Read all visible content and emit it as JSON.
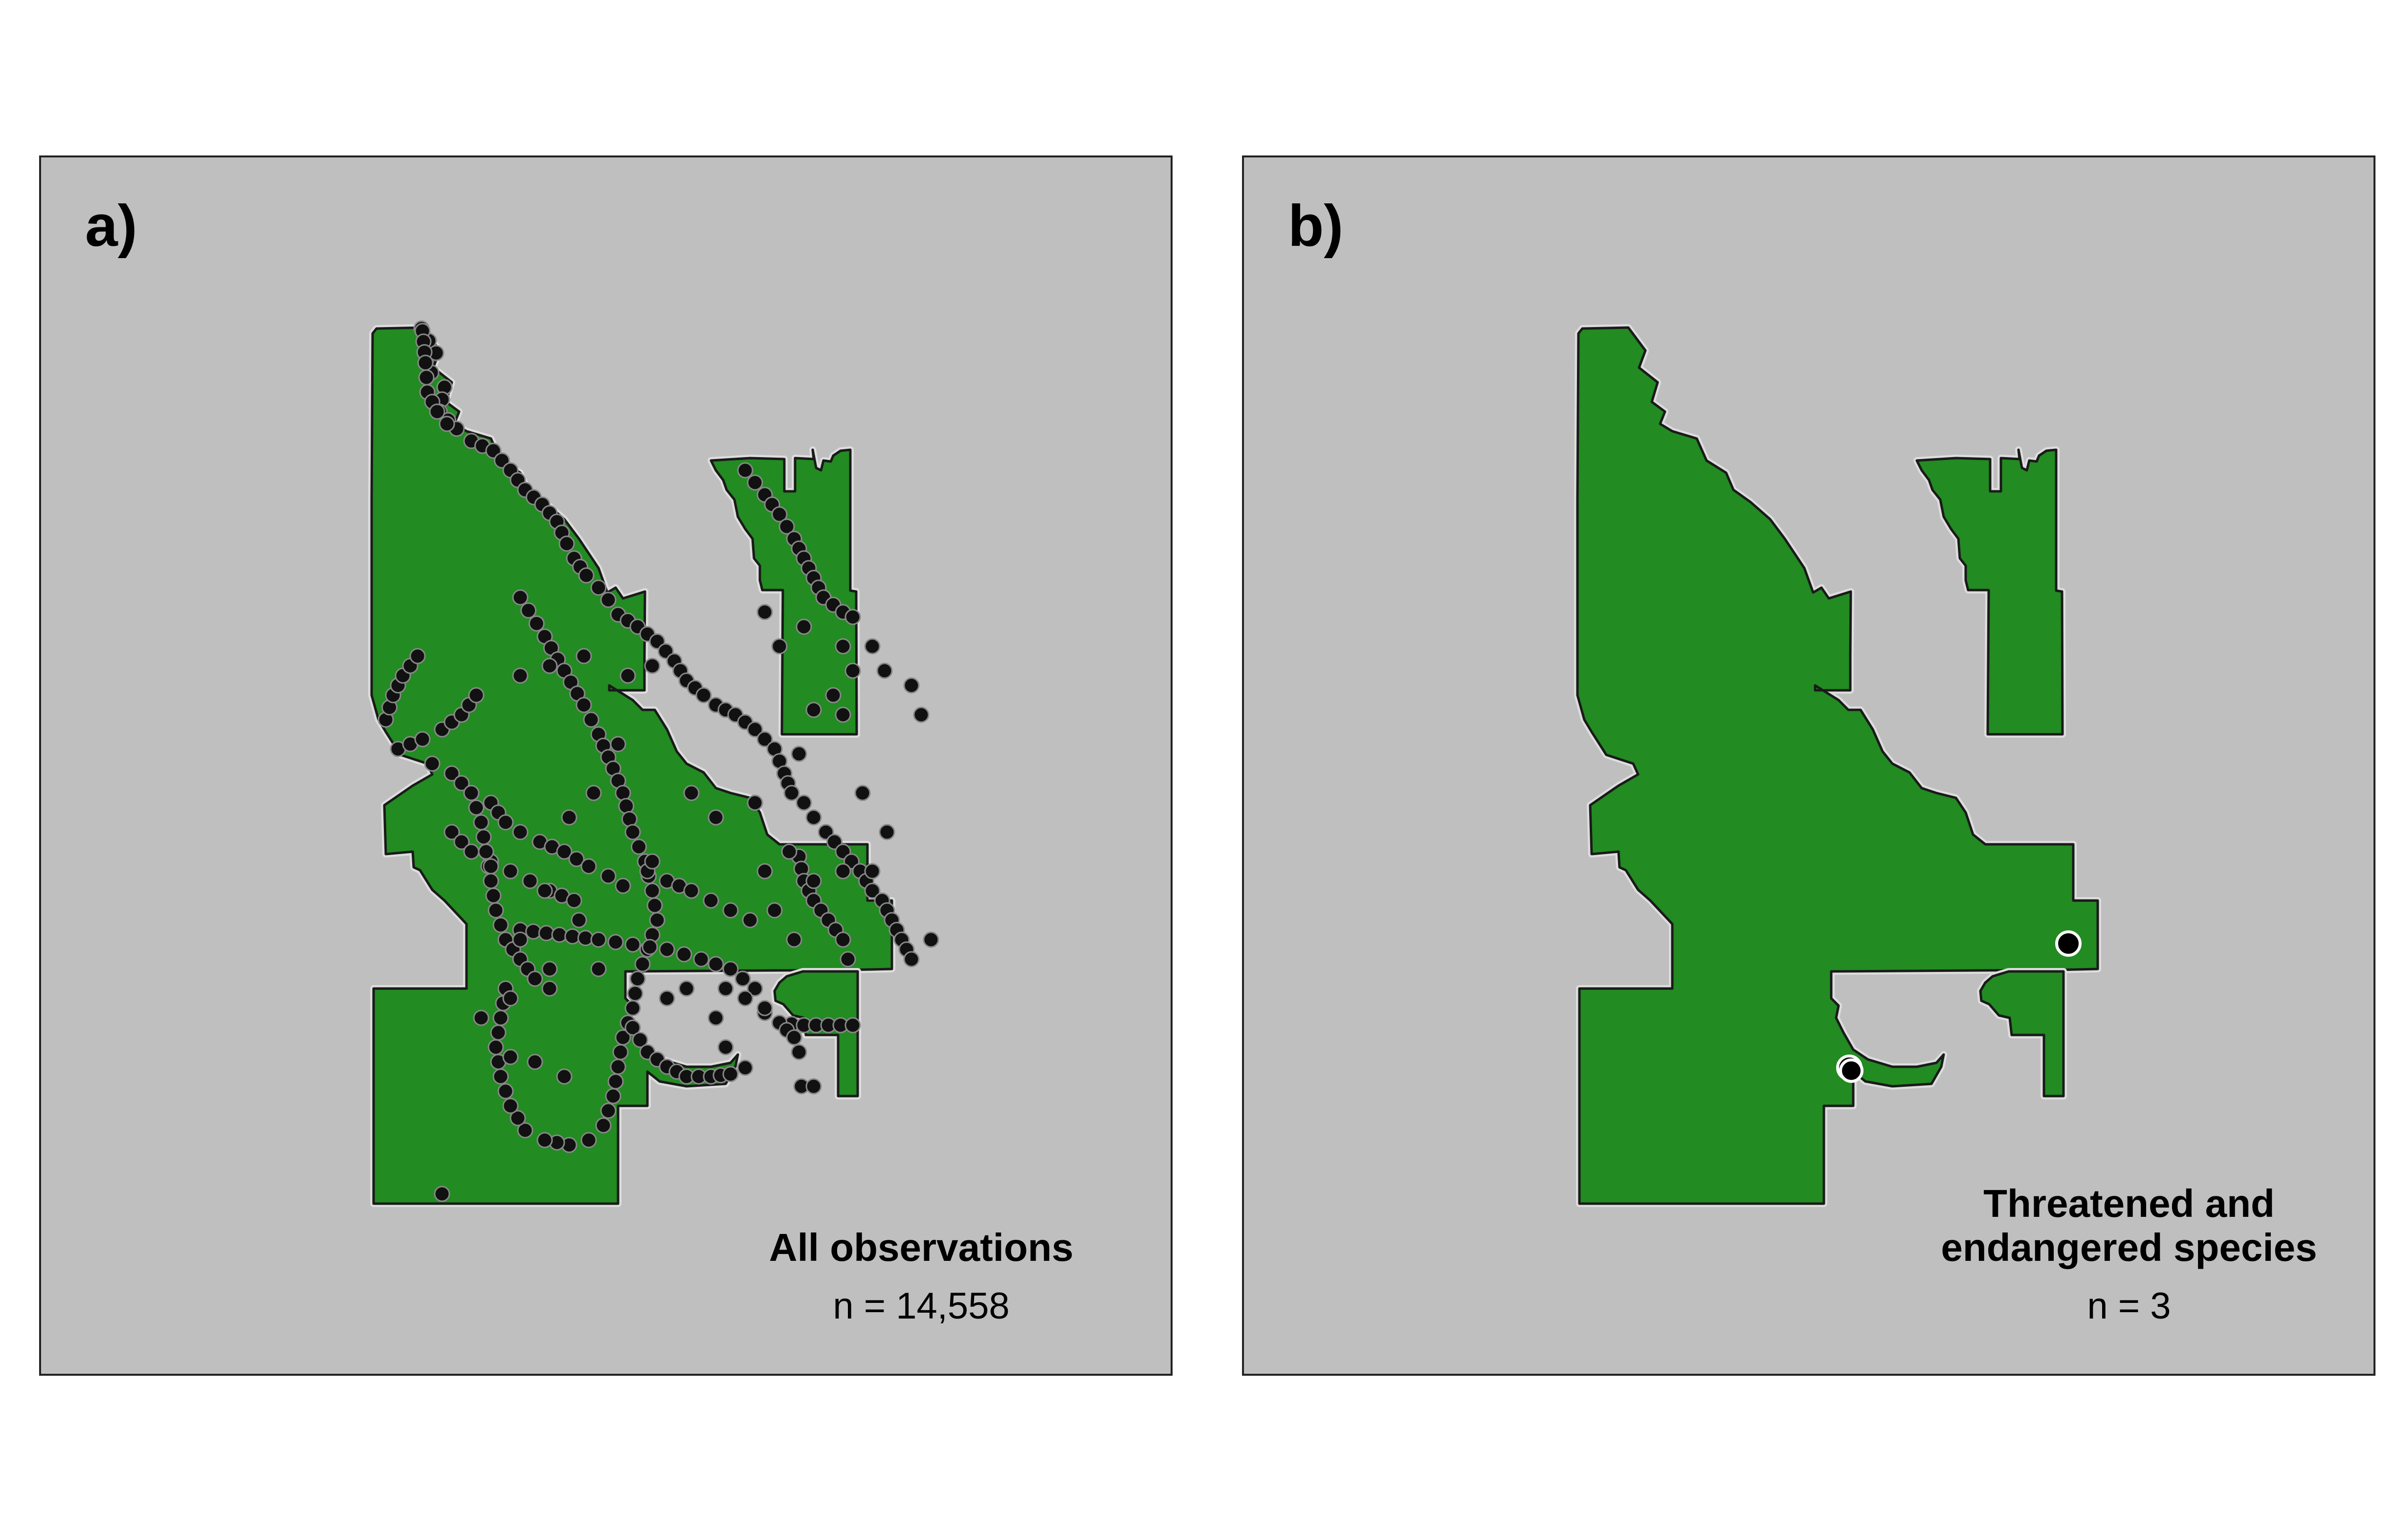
{
  "colors": {
    "background": "#ffffff",
    "panel_fill": "#bfbfbf",
    "land_fill": "#228b22",
    "point_fill": "#000000",
    "point_outline_b": "#ffffff"
  },
  "panels": [
    {
      "letter": "a)",
      "title": "All observations",
      "count_text": "n = 14,558",
      "points": "many black observation points along waterways and trails"
    },
    {
      "letter": "b)",
      "title": "Threatened and endangered species",
      "count_text": "n = 3",
      "points": "three black points with white outline"
    }
  ]
}
